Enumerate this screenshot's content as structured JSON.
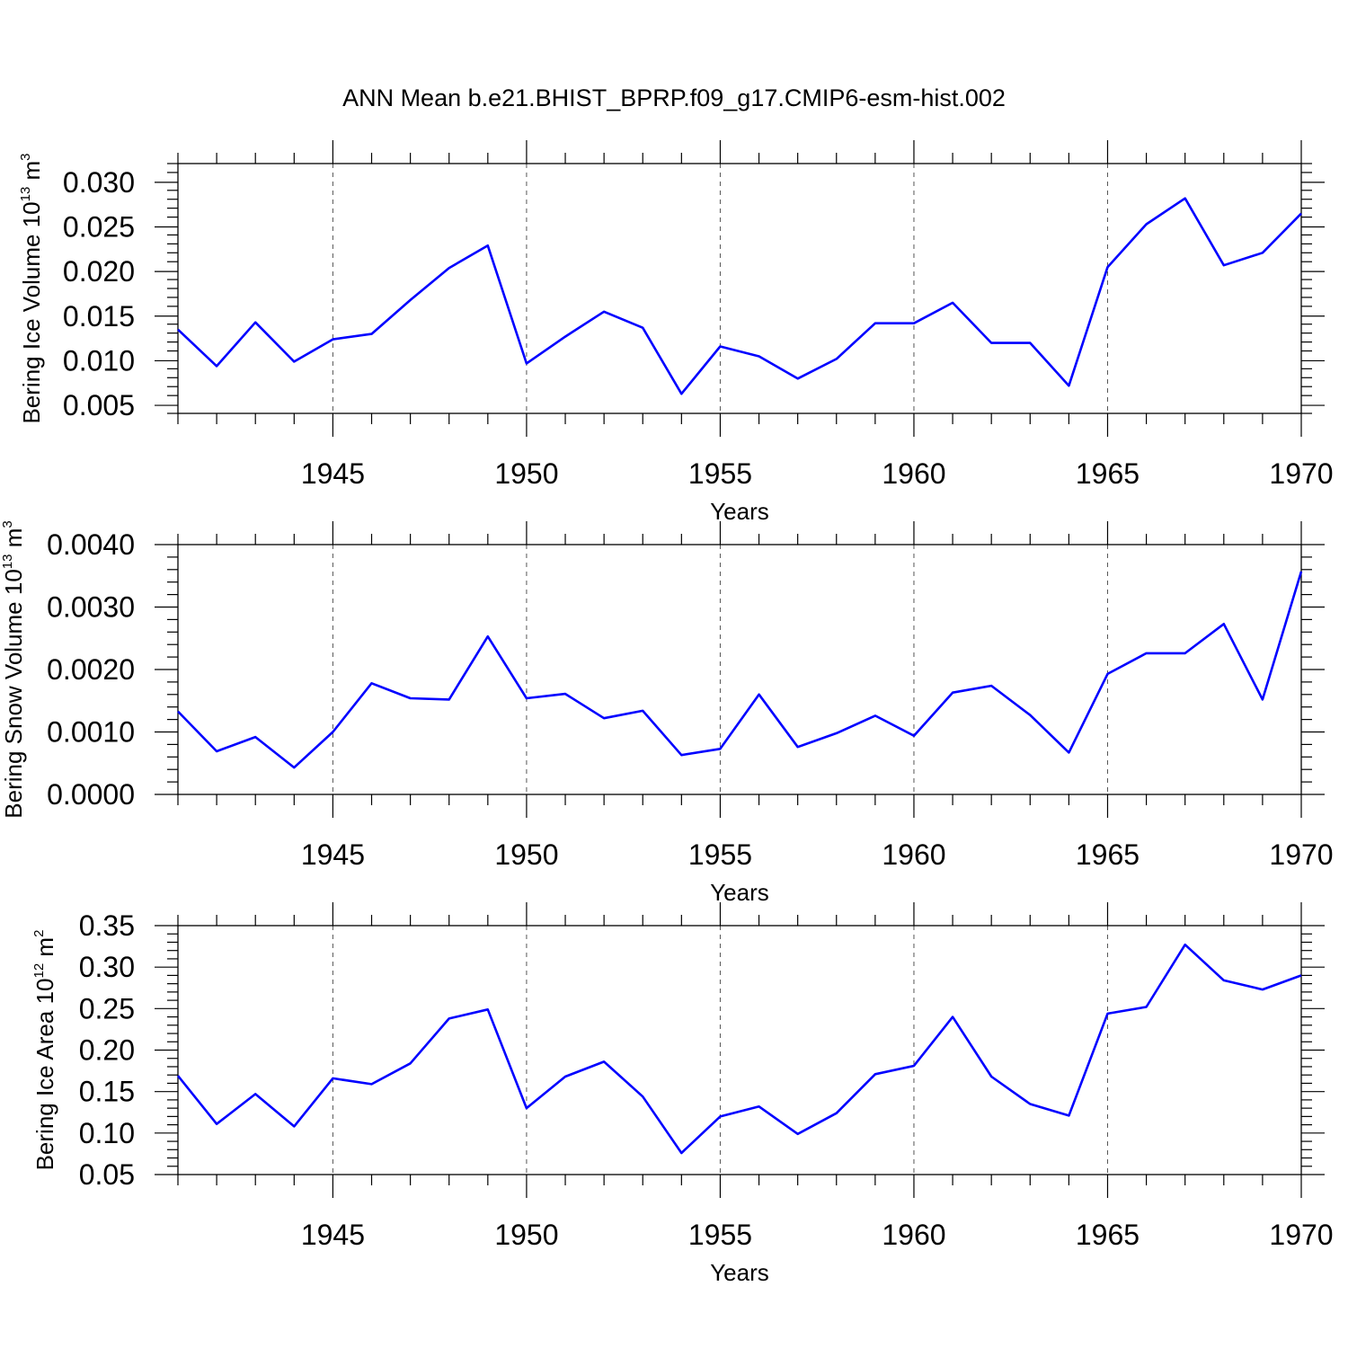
{
  "title": "ANN Mean b.e21.BHIST_BPRP.f09_g17.CMIP6-esm-hist.002",
  "colors": {
    "line": "#0000ff",
    "axis": "#000000",
    "grid": "#555555"
  },
  "chart_data": [
    {
      "type": "line",
      "xlabel": "Years",
      "ylabel": {
        "text": "Bering Ice Volume 10",
        "sup": "13",
        "unit": " m",
        "unit_sup": "3"
      },
      "xlim": [
        1941,
        1970
      ],
      "ylim": [
        0.0041,
        0.0321
      ],
      "xticks": [
        1945,
        1950,
        1955,
        1960,
        1965,
        1970
      ],
      "yticks": [
        0.005,
        0.01,
        0.015,
        0.02,
        0.025,
        0.03
      ],
      "yticklabels": [
        "0.005",
        "0.010",
        "0.015",
        "0.020",
        "0.025",
        "0.030"
      ],
      "yminor": 0.001,
      "grid_x": true,
      "x": [
        1941,
        1942,
        1943,
        1944,
        1945,
        1946,
        1947,
        1948,
        1949,
        1950,
        1951,
        1952,
        1953,
        1954,
        1955,
        1956,
        1957,
        1958,
        1959,
        1960,
        1961,
        1962,
        1963,
        1964,
        1965,
        1966,
        1967,
        1968,
        1969,
        1970
      ],
      "values": [
        0.0135,
        0.0094,
        0.0143,
        0.0099,
        0.0124,
        0.013,
        0.0168,
        0.0204,
        0.0229,
        0.0097,
        0.0127,
        0.0155,
        0.0137,
        0.0063,
        0.0116,
        0.0105,
        0.008,
        0.0102,
        0.0142,
        0.0142,
        0.0165,
        0.012,
        0.012,
        0.0072,
        0.0205,
        0.0253,
        0.0282,
        0.0207,
        0.0221,
        0.0265
      ]
    },
    {
      "type": "line",
      "xlabel": "Years",
      "ylabel": {
        "text": "Bering Snow Volume 10",
        "sup": "13",
        "unit": " m",
        "unit_sup": "3"
      },
      "xlim": [
        1941,
        1970
      ],
      "ylim": [
        0.0,
        0.004
      ],
      "xticks": [
        1945,
        1950,
        1955,
        1960,
        1965,
        1970
      ],
      "yticks": [
        0.0,
        0.001,
        0.002,
        0.003,
        0.004
      ],
      "yticklabels": [
        "0.0000",
        "0.0010",
        "0.0020",
        "0.0030",
        "0.0040"
      ],
      "yminor": 0.0002,
      "grid_x": true,
      "x": [
        1941,
        1942,
        1943,
        1944,
        1945,
        1946,
        1947,
        1948,
        1949,
        1950,
        1951,
        1952,
        1953,
        1954,
        1955,
        1956,
        1957,
        1958,
        1959,
        1960,
        1961,
        1962,
        1963,
        1964,
        1965,
        1966,
        1967,
        1968,
        1969,
        1970
      ],
      "values": [
        0.00133,
        0.00069,
        0.00092,
        0.00043,
        0.001,
        0.00178,
        0.00154,
        0.00152,
        0.00253,
        0.00154,
        0.00161,
        0.00122,
        0.00134,
        0.00063,
        0.00073,
        0.0016,
        0.00076,
        0.00098,
        0.00126,
        0.00094,
        0.00163,
        0.00174,
        0.00127,
        0.00067,
        0.00193,
        0.00226,
        0.00226,
        0.00273,
        0.00152,
        0.00357
      ]
    },
    {
      "type": "line",
      "xlabel": "Years",
      "ylabel": {
        "text": "Bering Ice Area 10",
        "sup": "12",
        "unit": " m",
        "unit_sup": "2"
      },
      "xlim": [
        1941,
        1970
      ],
      "ylim": [
        0.05,
        0.35
      ],
      "xticks": [
        1945,
        1950,
        1955,
        1960,
        1965,
        1970
      ],
      "yticks": [
        0.05,
        0.1,
        0.15,
        0.2,
        0.25,
        0.3,
        0.35
      ],
      "yticklabels": [
        "0.05",
        "0.10",
        "0.15",
        "0.20",
        "0.25",
        "0.30",
        "0.35"
      ],
      "yminor": 0.01,
      "grid_x": true,
      "x": [
        1941,
        1942,
        1943,
        1944,
        1945,
        1946,
        1947,
        1948,
        1949,
        1950,
        1951,
        1952,
        1953,
        1954,
        1955,
        1956,
        1957,
        1958,
        1959,
        1960,
        1961,
        1962,
        1963,
        1964,
        1965,
        1966,
        1967,
        1968,
        1969,
        1970
      ],
      "values": [
        0.169,
        0.111,
        0.147,
        0.108,
        0.166,
        0.159,
        0.184,
        0.238,
        0.249,
        0.13,
        0.168,
        0.186,
        0.144,
        0.076,
        0.12,
        0.132,
        0.099,
        0.124,
        0.171,
        0.181,
        0.24,
        0.168,
        0.135,
        0.121,
        0.244,
        0.252,
        0.327,
        0.284,
        0.273,
        0.29
      ]
    }
  ]
}
